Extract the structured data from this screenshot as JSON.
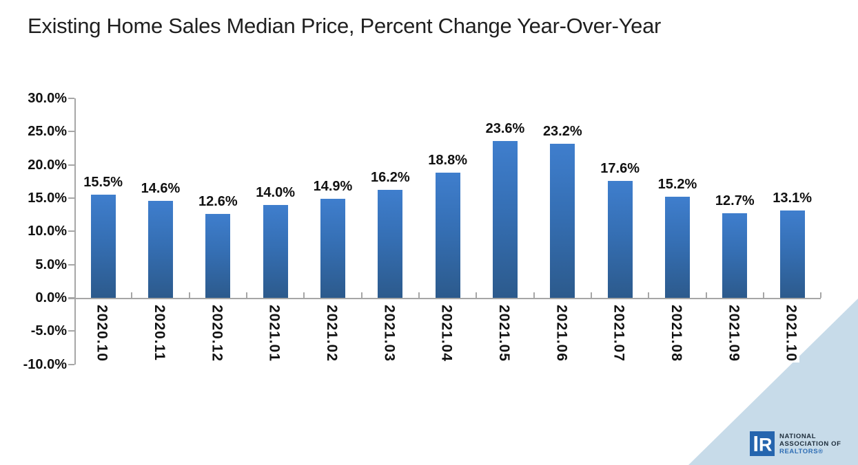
{
  "title": "Existing Home Sales Median Price, Percent Change Year-Over-Year",
  "chart_data": {
    "type": "bar",
    "title": "Existing Home Sales Median Price, Percent Change Year-Over-Year",
    "categories": [
      "2020.10",
      "2020.11",
      "2020.12",
      "2021.01",
      "2021.02",
      "2021.03",
      "2021.04",
      "2021.05",
      "2021.06",
      "2021.07",
      "2021.08",
      "2021.09",
      "2021.10"
    ],
    "values": [
      15.5,
      14.6,
      12.6,
      14.0,
      14.9,
      16.2,
      18.8,
      23.6,
      23.2,
      17.6,
      15.2,
      12.7,
      13.1
    ],
    "value_labels": [
      "15.5%",
      "14.6%",
      "12.6%",
      "14.0%",
      "14.9%",
      "16.2%",
      "18.8%",
      "23.6%",
      "23.2%",
      "17.6%",
      "15.2%",
      "12.7%",
      "13.1%"
    ],
    "xlabel": "",
    "ylabel": "",
    "ylim": [
      -10,
      30
    ],
    "ytick_values": [
      30,
      25,
      20,
      15,
      10,
      5,
      0,
      -5,
      -10
    ],
    "ytick_labels": [
      "30.0%",
      "25.0%",
      "20.0%",
      "15.0%",
      "10.0%",
      "5.0%",
      "0.0%",
      "-5.0%",
      "-10.0%"
    ],
    "grid": false,
    "legend_position": "none",
    "bar_color_top": "#3f7ecd",
    "bar_color_bottom": "#2c5a8c",
    "axis_color": "#a6a6a6"
  },
  "branding": {
    "logo_letter": "R",
    "org_line1": "NATIONAL",
    "org_line2": "ASSOCIATION OF",
    "org_line3": "REALTORS®",
    "logo_bg": "#2565ae",
    "text_dark": "#1c2b39",
    "text_blue": "#2e6db4",
    "triangle_color": "#c7dbe9"
  }
}
